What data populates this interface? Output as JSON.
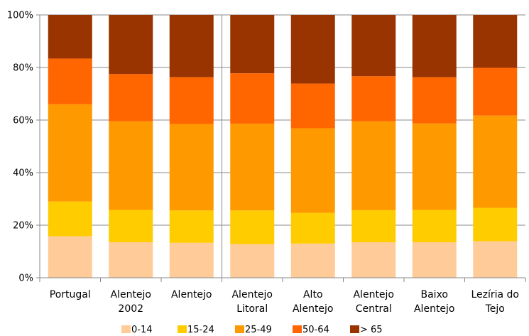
{
  "chart_data": {
    "type": "bar",
    "stacked": true,
    "percent": true,
    "categories": [
      [
        "Portugal"
      ],
      [
        "Alentejo",
        "2002"
      ],
      [
        "Alentejo"
      ],
      [
        "Alentejo",
        "Litoral"
      ],
      [
        "Alto",
        "Alentejo"
      ],
      [
        "Alentejo",
        "Central"
      ],
      [
        "Baixo",
        "Alentejo"
      ],
      [
        "Lezíria do",
        "Tejo"
      ]
    ],
    "series": [
      {
        "name": "0-14",
        "color": "#FFCC99",
        "values": [
          15.8,
          13.5,
          13.3,
          12.8,
          13.0,
          13.5,
          13.5,
          13.9
        ]
      },
      {
        "name": "15-24",
        "color": "#FFCC00",
        "values": [
          13.2,
          12.3,
          12.3,
          12.8,
          11.7,
          12.2,
          12.3,
          12.7
        ]
      },
      {
        "name": "25-49",
        "color": "#FF9900",
        "values": [
          37.0,
          33.7,
          32.9,
          33.0,
          32.2,
          33.8,
          32.9,
          35.1
        ]
      },
      {
        "name": "50-64",
        "color": "#FF6600",
        "values": [
          17.4,
          18.0,
          17.8,
          19.2,
          17.0,
          17.2,
          17.6,
          18.2
        ]
      },
      {
        "name": "> 65",
        "color": "#993300",
        "values": [
          16.6,
          22.5,
          23.7,
          22.2,
          26.1,
          23.3,
          23.7,
          20.1
        ]
      }
    ],
    "ylim": [
      0,
      100
    ],
    "yticks": [
      "0%",
      "20%",
      "40%",
      "60%",
      "80%",
      "100%"
    ],
    "grid": true,
    "legend": "bottom"
  }
}
